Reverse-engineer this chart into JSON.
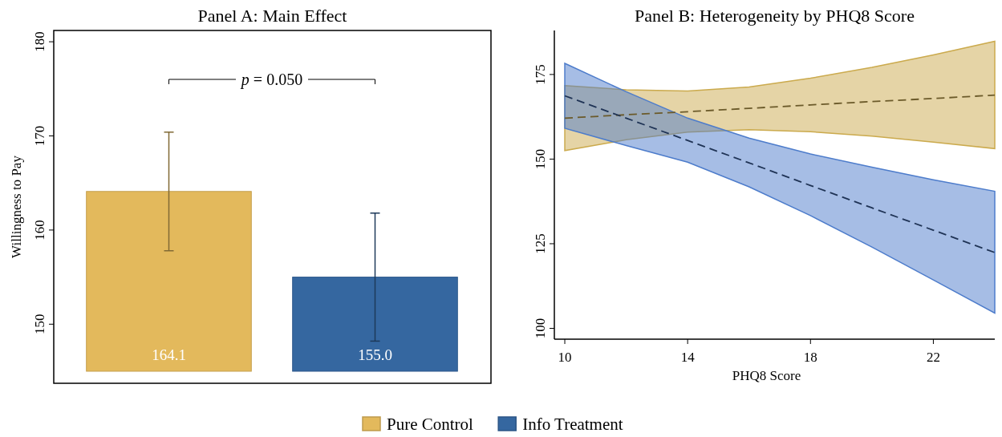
{
  "chart_data": [
    {
      "type": "bar",
      "title": "Panel A: Main Effect",
      "ylabel": "Willingness to Pay",
      "categories": [
        null
      ],
      "series": [
        {
          "name": "Pure Control",
          "color": "#e3b95c",
          "values": [
            164.1
          ],
          "value_labels": [
            "164.1"
          ],
          "errors": [
            [
              157.8,
              170.4
            ]
          ]
        },
        {
          "name": "Info Treatment",
          "color": "#3567a0",
          "values": [
            155.0
          ],
          "value_labels": [
            "155.0"
          ],
          "errors": [
            [
              148.2,
              161.8
            ]
          ]
        }
      ],
      "ylim": [
        145,
        181.2
      ],
      "yticks": [
        150,
        160,
        170,
        180
      ],
      "legend": "bottom",
      "grid": false,
      "annotations": [
        "p = 0.050"
      ]
    },
    {
      "type": "line",
      "title": "Panel B: Heterogeneity by PHQ8 Score",
      "xlabel": "PHQ8 Score",
      "series": [
        {
          "color": "#6b5a2a",
          "x": [
            10,
            12,
            14,
            16,
            18,
            20,
            22,
            24
          ],
          "values": [
            162.1,
            163.1,
            164.0,
            165.0,
            166.0,
            167.0,
            167.9,
            168.9
          ],
          "lower": [
            152.5,
            155.7,
            158.0,
            158.7,
            158.1,
            156.8,
            155.0,
            153.1
          ],
          "upper": [
            171.7,
            170.5,
            170.1,
            171.3,
            173.9,
            177.1,
            180.8,
            184.8
          ]
        },
        {
          "color": "#1f3355",
          "x": [
            10,
            12,
            14,
            16,
            18,
            20,
            22,
            24
          ],
          "values": [
            168.7,
            162.1,
            155.5,
            148.9,
            142.2,
            135.6,
            129.0,
            122.4
          ],
          "lower": [
            159.1,
            154.0,
            149.1,
            141.8,
            133.3,
            124.0,
            114.3,
            104.5
          ],
          "upper": [
            178.3,
            169.9,
            162.1,
            156.2,
            151.5,
            147.6,
            143.9,
            140.5
          ]
        }
      ],
      "xlim": [
        9.66,
        24
      ],
      "xticks": [
        10,
        14,
        18,
        22
      ],
      "ylim": [
        96.8,
        188
      ],
      "yticks": [
        100,
        125,
        150,
        175
      ],
      "line_style": "dashed",
      "marker": "none",
      "grid": false
    }
  ]
}
